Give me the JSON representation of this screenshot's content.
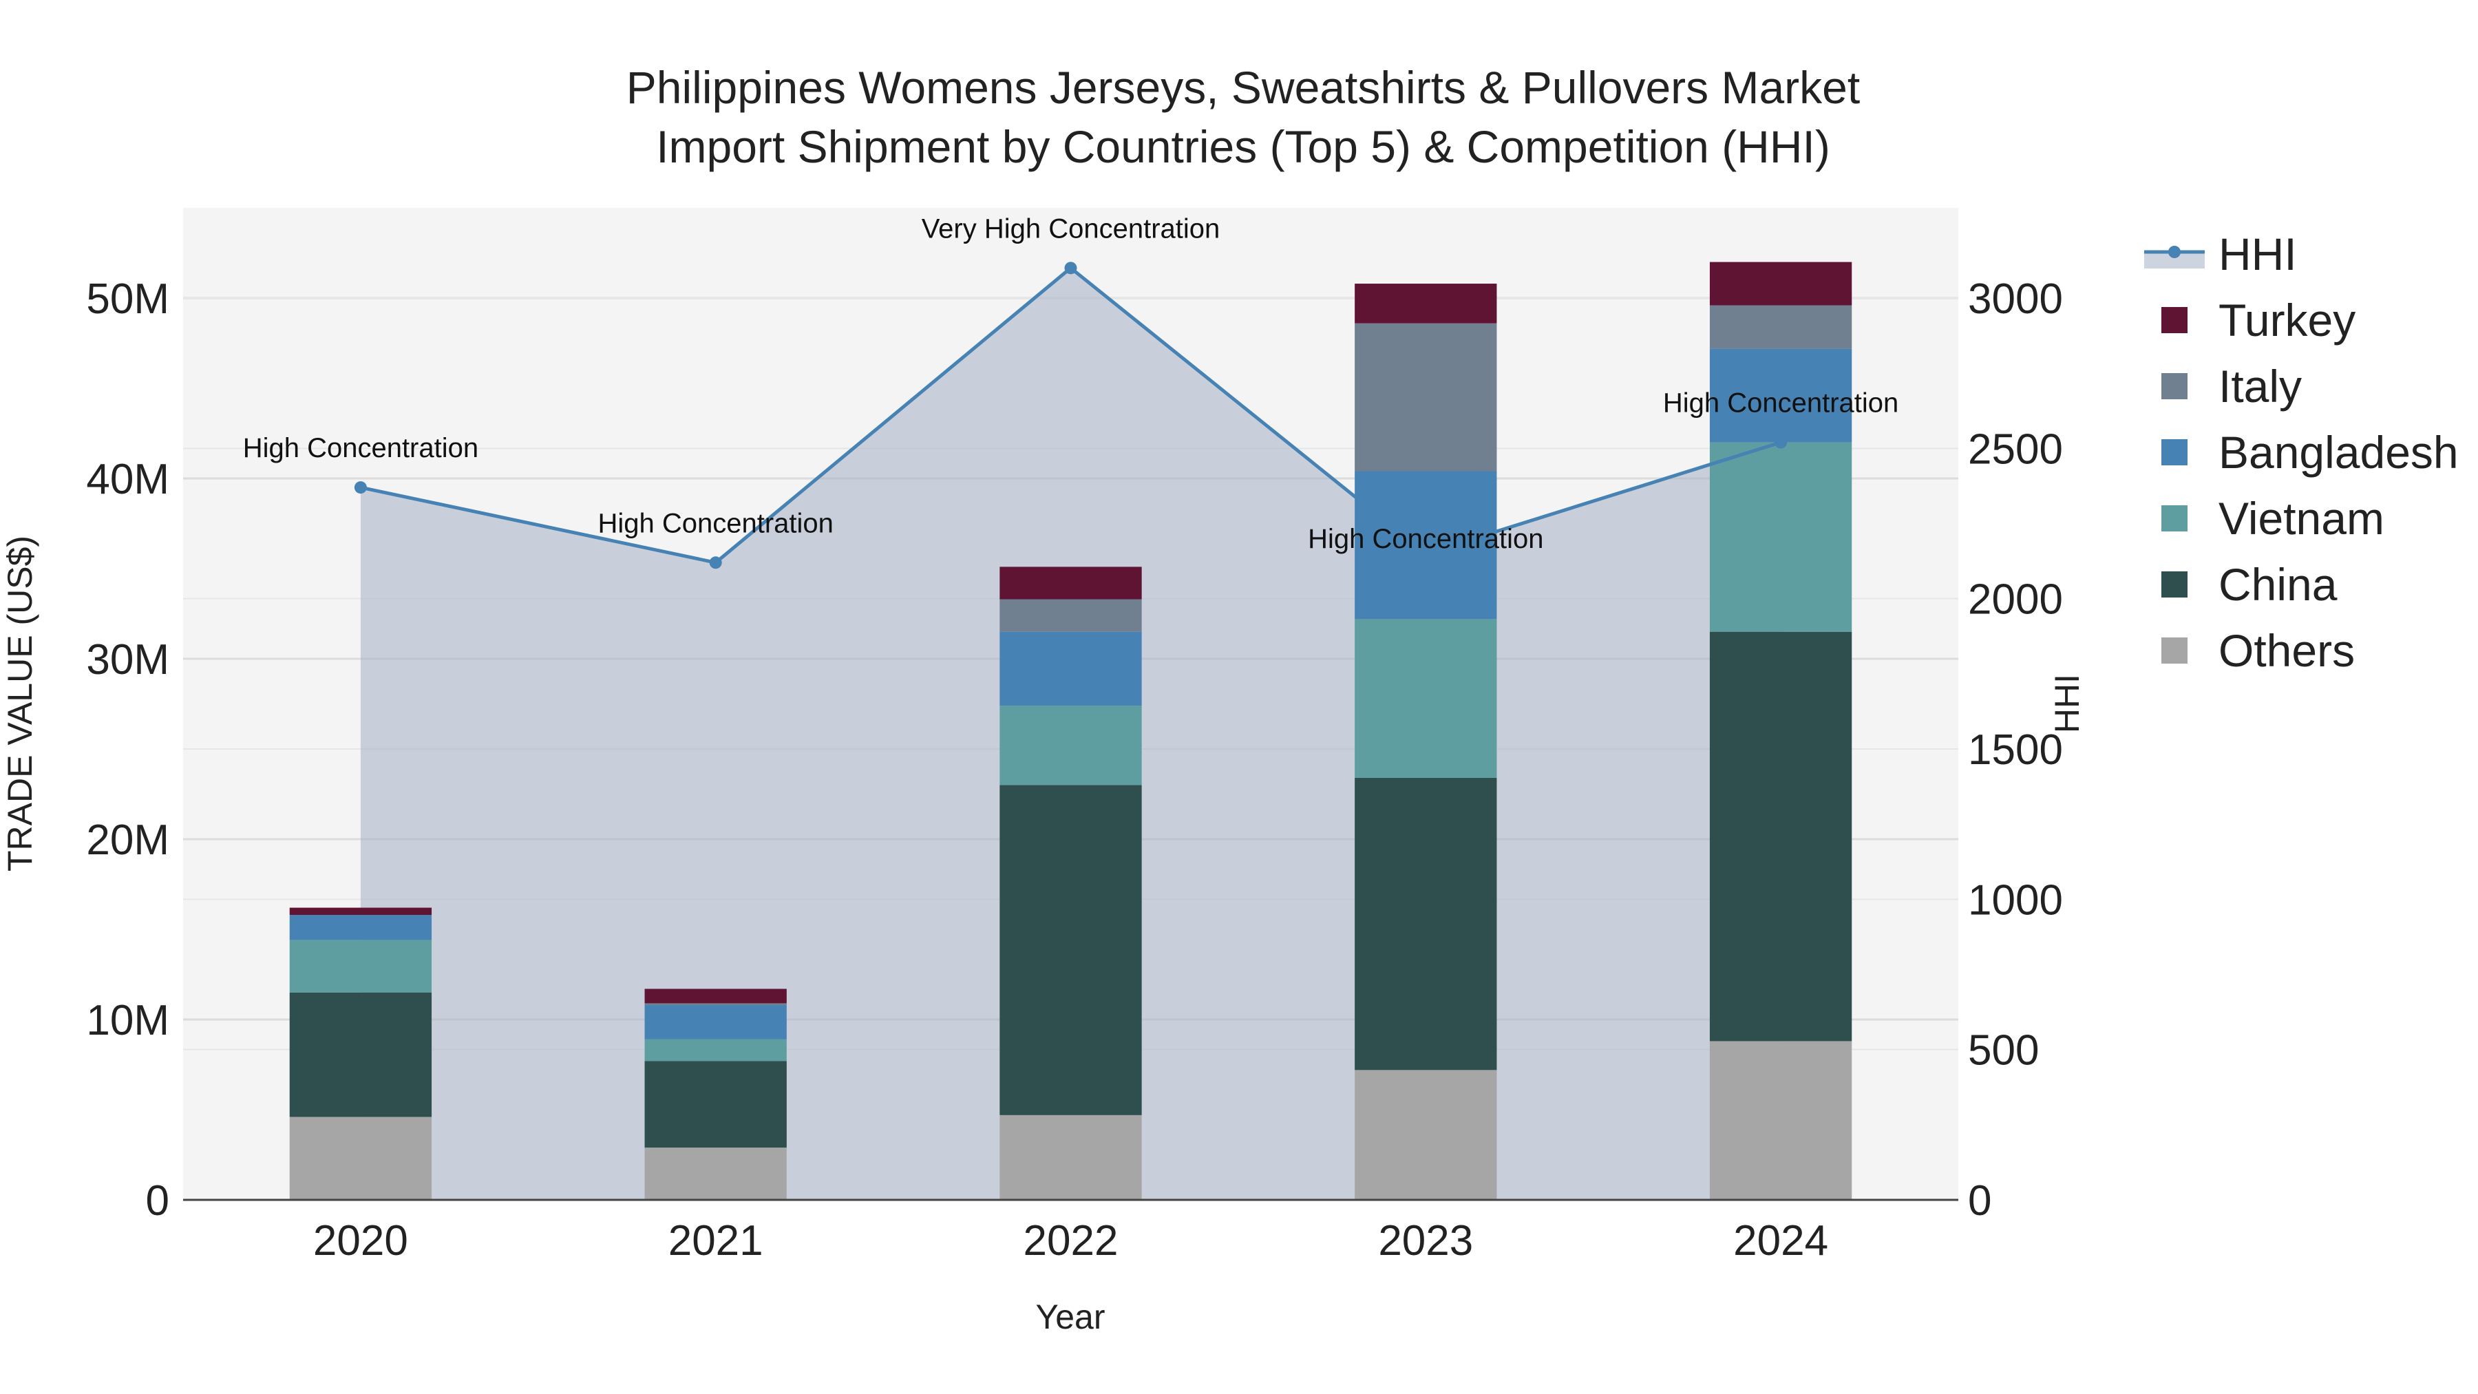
{
  "chart_data": {
    "type": "bar",
    "title_line1": "Philippines Womens Jerseys, Sweatshirts & Pullovers Market",
    "title_line2": "Import Shipment by Countries (Top 5) & Competition (HHI)",
    "xlabel": "Year",
    "ylabel": "TRADE VALUE (US$)",
    "y2label": "HHI",
    "categories": [
      "2020",
      "2021",
      "2022",
      "2023",
      "2024"
    ],
    "ylim": [
      0,
      55000000
    ],
    "yticks": [
      0,
      10000000,
      20000000,
      30000000,
      40000000,
      50000000
    ],
    "ytick_labels": [
      "0",
      "10M",
      "20M",
      "30M",
      "40M",
      "50M"
    ],
    "y2lim": [
      0,
      3300
    ],
    "y2ticks": [
      0,
      500,
      1000,
      1500,
      2000,
      2500,
      3000
    ],
    "y2tick_labels": [
      "0",
      "500",
      "1000",
      "1500",
      "2000",
      "2500",
      "3000"
    ],
    "series": [
      {
        "name": "Others",
        "color": "#a6a6a6",
        "values": [
          4600000,
          2900000,
          4700000,
          7200000,
          8800000
        ]
      },
      {
        "name": "China",
        "color": "#2f4f4f",
        "values": [
          6900000,
          4800000,
          18300000,
          16200000,
          22700000
        ]
      },
      {
        "name": "Vietnam",
        "color": "#5f9ea0",
        "values": [
          2900000,
          1200000,
          4400000,
          8800000,
          10500000
        ]
      },
      {
        "name": "Bangladesh",
        "color": "#4682b4",
        "values": [
          1400000,
          1900000,
          4100000,
          8200000,
          5200000
        ]
      },
      {
        "name": "Italy",
        "color": "#708090",
        "values": [
          0,
          100000,
          1800000,
          8200000,
          2400000
        ]
      },
      {
        "name": "Turkey",
        "color": "#601434",
        "values": [
          400000,
          800000,
          1800000,
          2200000,
          2400000
        ]
      }
    ],
    "hhi": {
      "name": "HHI",
      "color": "#4682b4",
      "values": [
        2370,
        2120,
        3100,
        2150,
        2520
      ],
      "labels": [
        "High Concentration",
        "High Concentration",
        "Very High Concentration",
        "High Concentration",
        "High Concentration"
      ]
    },
    "legend_order": [
      "HHI",
      "Turkey",
      "Italy",
      "Bangladesh",
      "Vietnam",
      "China",
      "Others"
    ]
  }
}
